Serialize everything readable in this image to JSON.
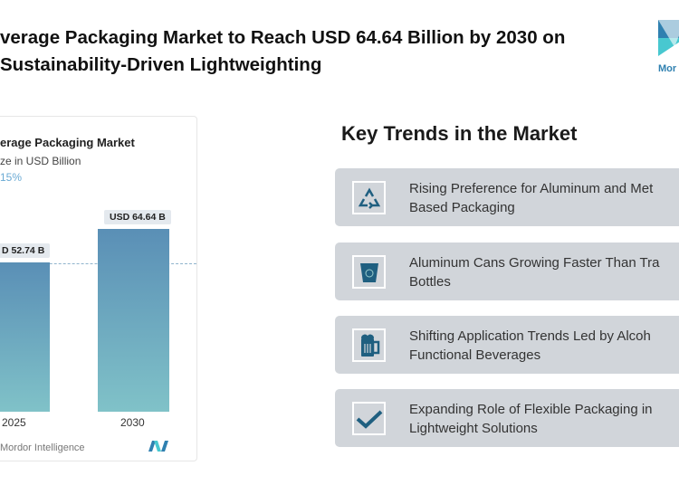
{
  "header": {
    "title_line1": "verage Packaging Market to Reach USD 64.64 Billion by 2030 on",
    "title_line2": "Sustainability-Driven Lightweighting",
    "logo_text": "Mor"
  },
  "chart_data": {
    "type": "bar",
    "title": "erage Packaging Market",
    "subtitle": "ze in USD Billion",
    "growth": "15%",
    "categories": [
      "2025",
      "2030"
    ],
    "values": [
      52.74,
      64.64
    ],
    "value_labels": [
      "D 52.74 B",
      "USD 64.64 B"
    ],
    "ylim": [
      0,
      64.64
    ],
    "colors": {
      "top": "#5a8fb6",
      "bottom": "#80c2c8"
    },
    "footer": "Mordor Intelligence",
    "footer_logo": "MI"
  },
  "trends": {
    "heading": "Key Trends in the Market",
    "items": [
      {
        "icon": "recycle-icon",
        "line1": "Rising Preference for Aluminum and Met",
        "line2": "Based Packaging"
      },
      {
        "icon": "recycle-bin-icon",
        "line1": "Aluminum Cans Growing Faster Than Tra",
        "line2": "Bottles"
      },
      {
        "icon": "beer-mug-icon",
        "line1": "Shifting Application Trends Led by Alcoh",
        "line2": "Functional Beverages"
      },
      {
        "icon": "checkmark-icon",
        "line1": "Expanding Role of Flexible Packaging in",
        "line2": "Lightweight Solutions"
      }
    ]
  },
  "colors": {
    "accent": "#1f5f80",
    "card": "#d1d5da"
  }
}
